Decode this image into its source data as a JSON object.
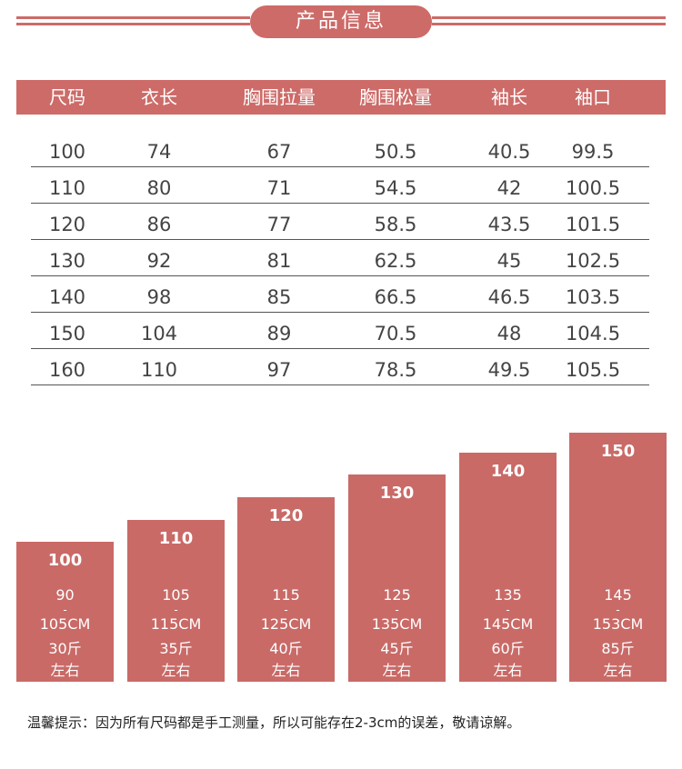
{
  "header": {
    "title": "产品信息"
  },
  "table": {
    "columns": [
      "尺码",
      "衣长",
      "胸围拉量",
      "胸围松量",
      "袖长",
      "袖口"
    ],
    "rows": [
      [
        "100",
        "74",
        "67",
        "50.5",
        "40.5",
        "99.5"
      ],
      [
        "110",
        "80",
        "71",
        "54.5",
        "42",
        "100.5"
      ],
      [
        "120",
        "86",
        "77",
        "58.5",
        "43.5",
        "101.5"
      ],
      [
        "130",
        "92",
        "81",
        "62.5",
        "45",
        "102.5"
      ],
      [
        "140",
        "98",
        "85",
        "66.5",
        "46.5",
        "103.5"
      ],
      [
        "150",
        "104",
        "89",
        "70.5",
        "48",
        "104.5"
      ],
      [
        "160",
        "110",
        "97",
        "78.5",
        "49.5",
        "105.5"
      ]
    ]
  },
  "size_guide": [
    {
      "size": "100",
      "height_from": "90",
      "dash": "-",
      "height_to": "105CM",
      "weight": "30斤",
      "note": "左右"
    },
    {
      "size": "110",
      "height_from": "105",
      "dash": "-",
      "height_to": "115CM",
      "weight": "35斤",
      "note": "左右"
    },
    {
      "size": "120",
      "height_from": "115",
      "dash": "-",
      "height_to": "125CM",
      "weight": "40斤",
      "note": "左右"
    },
    {
      "size": "130",
      "height_from": "125",
      "dash": "-",
      "height_to": "135CM",
      "weight": "45斤",
      "note": "左右"
    },
    {
      "size": "140",
      "height_from": "135",
      "dash": "-",
      "height_to": "145CM",
      "weight": "60斤",
      "note": "左右"
    },
    {
      "size": "150",
      "height_from": "145",
      "dash": "-",
      "height_to": "153CM",
      "weight": "85斤",
      "note": "左右"
    }
  ],
  "footer": {
    "note": "温馨提示：因为所有尺码都是手工测量，所以可能存在2-3cm的误差，敬请谅解。"
  }
}
